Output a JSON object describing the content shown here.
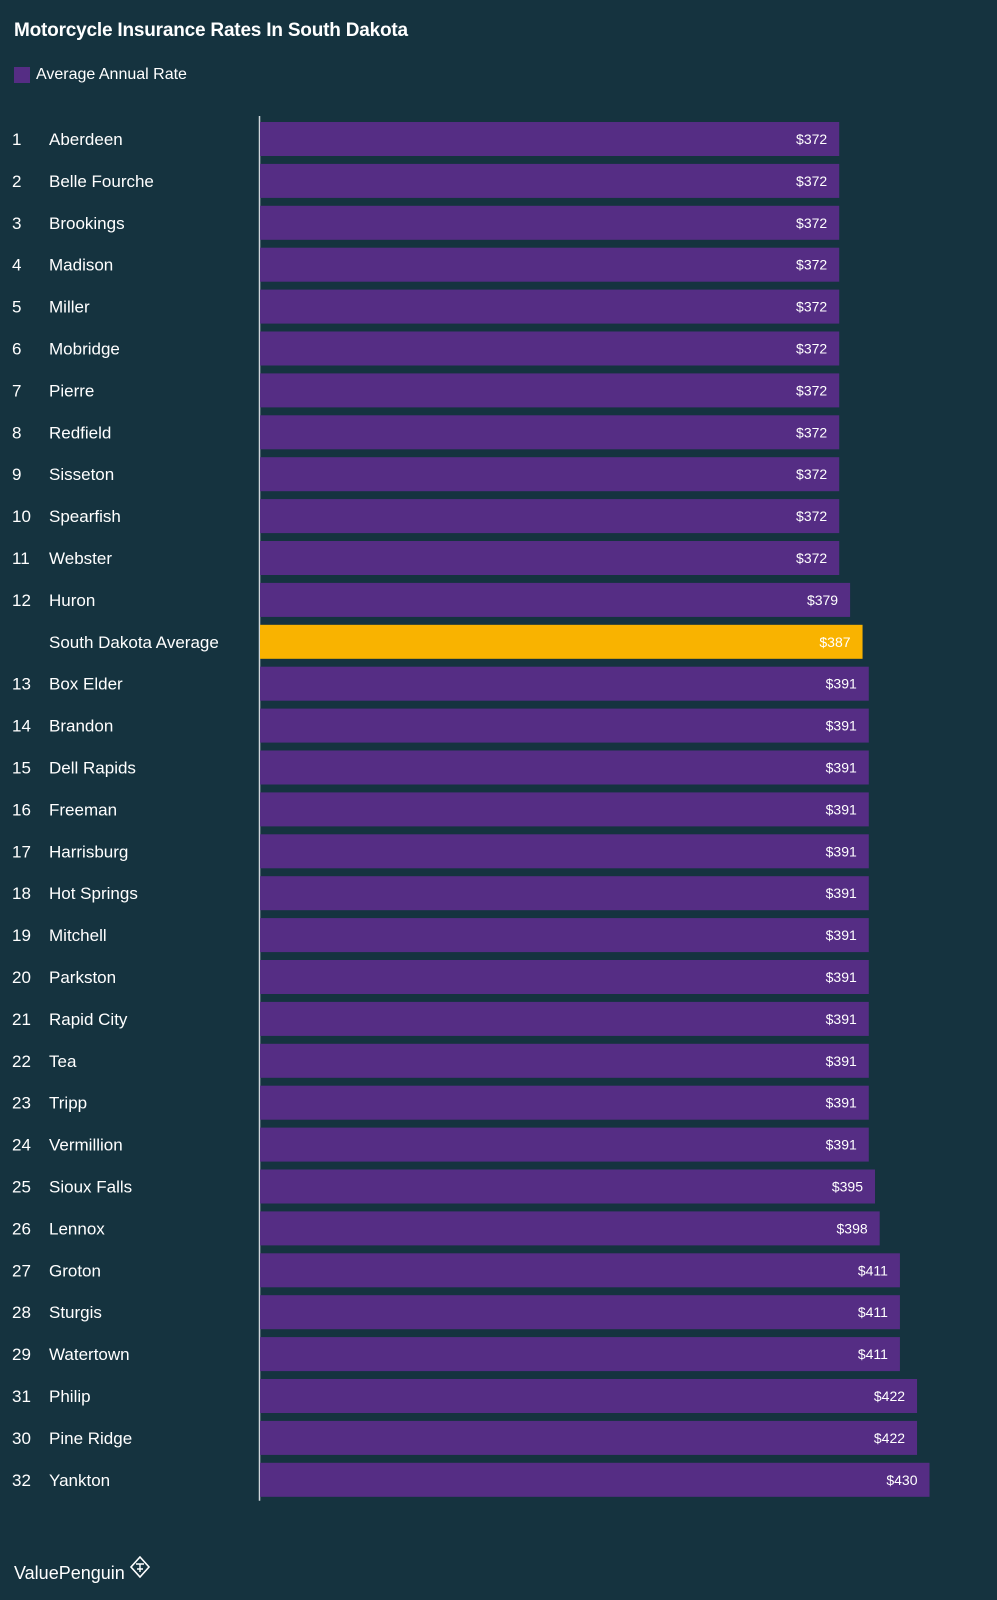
{
  "colors": {
    "background": "#15333f",
    "bar": "#552d84",
    "highlight": "#f9b300",
    "text": "#ffffff"
  },
  "brand": {
    "name": "ValuePenguin",
    "icon": "penguin-logo-icon"
  },
  "chart_data": {
    "type": "bar",
    "orientation": "horizontal",
    "title": "Motorcycle Insurance Rates In South Dakota",
    "legend": [
      "Average Annual Rate"
    ],
    "legend_position": "top-left",
    "grid": false,
    "series": [
      {
        "name": "Average Annual Rate",
        "color": "#552d84",
        "rows": [
          {
            "rank": "1",
            "category": "Aberdeen",
            "value": 372
          },
          {
            "rank": "2",
            "category": "Belle Fourche",
            "value": 372
          },
          {
            "rank": "3",
            "category": "Brookings",
            "value": 372
          },
          {
            "rank": "4",
            "category": "Madison",
            "value": 372
          },
          {
            "rank": "5",
            "category": "Miller",
            "value": 372
          },
          {
            "rank": "6",
            "category": "Mobridge",
            "value": 372
          },
          {
            "rank": "7",
            "category": "Pierre",
            "value": 372
          },
          {
            "rank": "8",
            "category": "Redfield",
            "value": 372
          },
          {
            "rank": "9",
            "category": "Sisseton",
            "value": 372
          },
          {
            "rank": "10",
            "category": "Spearfish",
            "value": 372
          },
          {
            "rank": "11",
            "category": "Webster",
            "value": 372
          },
          {
            "rank": "12",
            "category": "Huron",
            "value": 379
          },
          {
            "rank": "",
            "category": "South Dakota Average",
            "value": 387,
            "highlight": true
          },
          {
            "rank": "13",
            "category": "Box Elder",
            "value": 391
          },
          {
            "rank": "14",
            "category": "Brandon",
            "value": 391
          },
          {
            "rank": "15",
            "category": "Dell Rapids",
            "value": 391
          },
          {
            "rank": "16",
            "category": "Freeman",
            "value": 391
          },
          {
            "rank": "17",
            "category": "Harrisburg",
            "value": 391
          },
          {
            "rank": "18",
            "category": "Hot Springs",
            "value": 391
          },
          {
            "rank": "19",
            "category": "Mitchell",
            "value": 391
          },
          {
            "rank": "20",
            "category": "Parkston",
            "value": 391
          },
          {
            "rank": "21",
            "category": "Rapid City",
            "value": 391
          },
          {
            "rank": "22",
            "category": "Tea",
            "value": 391
          },
          {
            "rank": "23",
            "category": "Tripp",
            "value": 391
          },
          {
            "rank": "24",
            "category": "Vermillion",
            "value": 391
          },
          {
            "rank": "25",
            "category": "Sioux Falls",
            "value": 395
          },
          {
            "rank": "26",
            "category": "Lennox",
            "value": 398
          },
          {
            "rank": "27",
            "category": "Groton",
            "value": 411
          },
          {
            "rank": "28",
            "category": "Sturgis",
            "value": 411
          },
          {
            "rank": "29",
            "category": "Watertown",
            "value": 411
          },
          {
            "rank": "31",
            "category": "Philip",
            "value": 422
          },
          {
            "rank": "30",
            "category": "Pine Ridge",
            "value": 422
          },
          {
            "rank": "32",
            "category": "Yankton",
            "value": 430
          }
        ]
      }
    ],
    "value_prefix": "$"
  }
}
